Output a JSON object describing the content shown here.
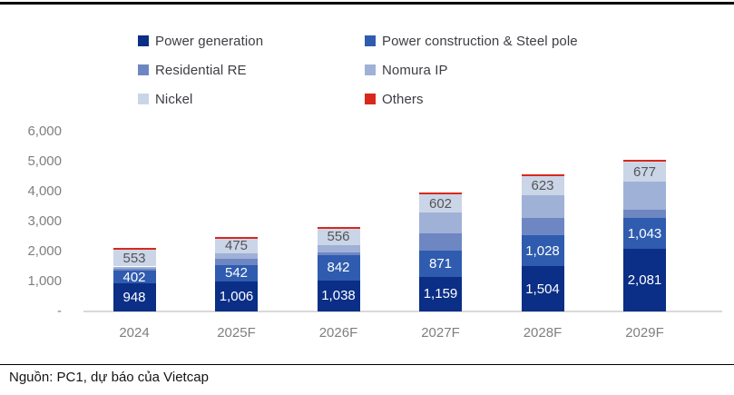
{
  "chart_data": {
    "type": "bar",
    "subtype": "stacked-column",
    "categories": [
      "2024",
      "2025F",
      "2026F",
      "2027F",
      "2028F",
      "2029F"
    ],
    "series": [
      {
        "name": "Power generation",
        "color": "#0b2e86",
        "values": [
          948,
          1006,
          1038,
          1159,
          1504,
          2081
        ],
        "labeled": true,
        "label_style": "light"
      },
      {
        "name": "Power construction & Steel pole",
        "color": "#2f5caf",
        "values": [
          402,
          542,
          842,
          871,
          1028,
          1043
        ],
        "labeled": true,
        "label_style": "light"
      },
      {
        "name": "Residential RE",
        "color": "#6e87c3",
        "values": [
          70,
          220,
          100,
          570,
          600,
          270
        ],
        "labeled": false,
        "label_style": "light"
      },
      {
        "name": "Nomura IP",
        "color": "#9fb1d6",
        "values": [
          80,
          180,
          230,
          700,
          760,
          930
        ],
        "labeled": false,
        "label_style": "light"
      },
      {
        "name": "Nickel",
        "color": "#cbd5e8",
        "values": [
          553,
          475,
          556,
          602,
          623,
          677
        ],
        "labeled": true,
        "label_style": "dark"
      },
      {
        "name": "Others",
        "color": "#d9291c",
        "values": [
          35,
          30,
          30,
          30,
          45,
          40
        ],
        "labeled": false,
        "label_style": "light"
      }
    ],
    "title": "",
    "xlabel": "",
    "ylabel": "",
    "ylim": [
      0,
      6000
    ],
    "ytick_labels": [
      "6,000",
      "5,000",
      "4,000",
      "3,000",
      "2,000",
      "1,000",
      "-"
    ],
    "grid": false,
    "legend_position": "top-two-columns"
  },
  "source": {
    "text": "Nguồn: PC1, dự báo của Vietcap"
  },
  "colors": {
    "axis_line": "#d9d9d9",
    "tick_text": "#7f7f7f",
    "legend_text": "#3d3d44",
    "top_border": "#000000",
    "background": "#ffffff"
  }
}
